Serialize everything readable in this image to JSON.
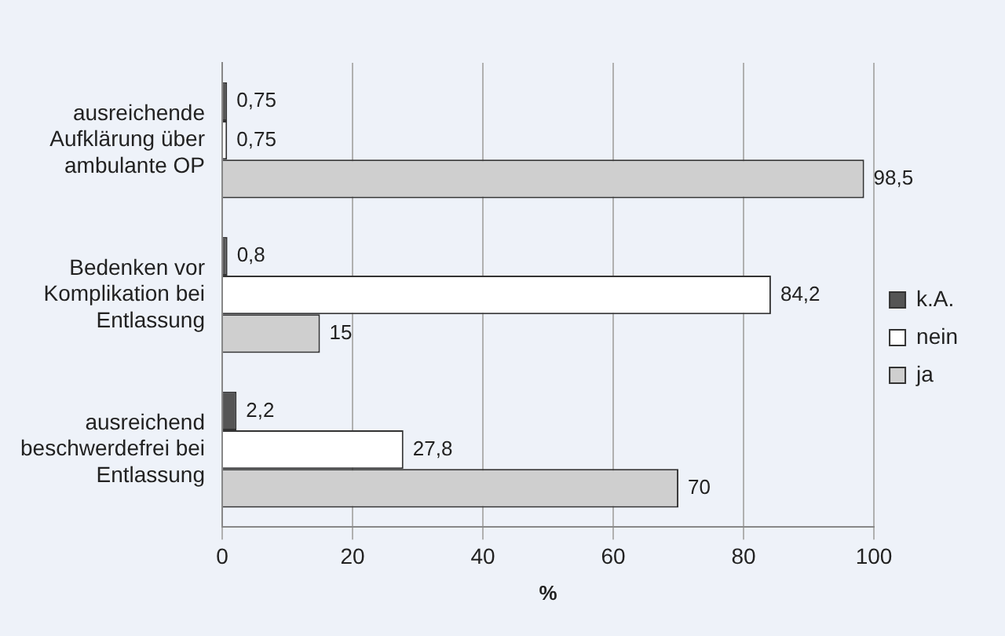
{
  "chart_data": {
    "type": "bar",
    "orientation": "horizontal",
    "xlabel": "%",
    "categories": [
      "ausreichende Aufklärung über ambulante OP",
      "Bedenken vor Komplikation bei Entlassung",
      "ausreichend beschwerdefrei bei Entlassung"
    ],
    "series": [
      {
        "name": "k.A.",
        "color": "#555555",
        "values": [
          0.75,
          0.8,
          2.2
        ],
        "value_labels": [
          "0,75",
          "0,8",
          "2,2"
        ]
      },
      {
        "name": "nein",
        "color": "#ffffff",
        "values": [
          0.75,
          84.2,
          27.8
        ],
        "value_labels": [
          "0,75",
          "84,2",
          "27,8"
        ]
      },
      {
        "name": "ja",
        "color": "#cfcfcf",
        "values": [
          98.5,
          15,
          70
        ],
        "value_labels": [
          "98,5",
          "15",
          "70"
        ]
      }
    ],
    "xlim": [
      0,
      100
    ],
    "xticks": [
      0,
      20,
      40,
      60,
      80,
      100
    ],
    "grid": "x",
    "legend": "right"
  }
}
